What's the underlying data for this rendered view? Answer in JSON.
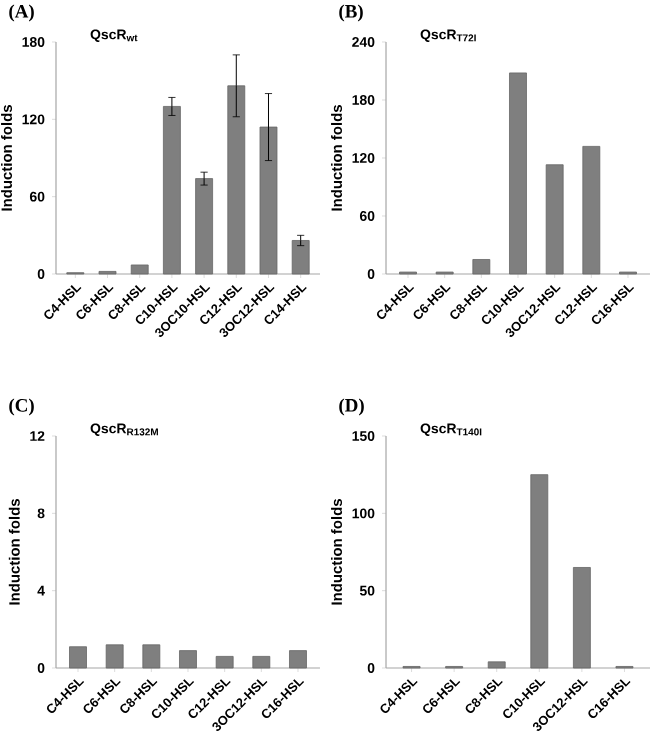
{
  "chart_data": [
    {
      "type": "bar",
      "title": "QscR$_{wt}$",
      "ylabel": "Induction folds",
      "annotations": [
        "(A)"
      ],
      "categories": [
        "C4-HSL",
        "C6-HSL",
        "C8-HSL",
        "C10-HSL",
        "3OC10-HSL",
        "C12-HSL",
        "3OC12-HSL",
        "C14-HSL"
      ],
      "values": [
        1,
        2,
        7,
        130,
        74,
        146,
        114,
        26
      ],
      "errors": [
        null,
        null,
        null,
        7,
        5,
        24,
        26,
        4
      ],
      "color": "#7f7f7f",
      "ylim": [
        0,
        180
      ],
      "yticks": [
        0,
        60,
        120,
        180
      ]
    },
    {
      "type": "bar",
      "title": "QscR$_{T72I}$",
      "ylabel": "Induction folds",
      "annotations": [
        "(B)"
      ],
      "categories": [
        "C4-HSL",
        "C6-HSL",
        "C8-HSL",
        "C10-HSL",
        "3OC12-HSL",
        "C12-HSL",
        "C16-HSL"
      ],
      "values": [
        2,
        2,
        15,
        208,
        113,
        132,
        2
      ],
      "color": "#7f7f7f",
      "ylim": [
        0,
        240
      ],
      "yticks": [
        0,
        60,
        120,
        180,
        240
      ]
    },
    {
      "type": "bar",
      "title": "QscR$_{R132M}$",
      "ylabel": "Induction folds",
      "annotations": [
        "(C)"
      ],
      "categories": [
        "C4-HSL",
        "C6-HSL",
        "C8-HSL",
        "C10-HSL",
        "C12-HSL",
        "3OC12-HSL",
        "C16-HSL"
      ],
      "values": [
        1.1,
        1.2,
        1.2,
        0.9,
        0.6,
        0.6,
        0.9
      ],
      "color": "#7f7f7f",
      "ylim": [
        0,
        12
      ],
      "yticks": [
        0,
        4,
        8,
        12
      ]
    },
    {
      "type": "bar",
      "title": "QscR$_{T140I}$",
      "ylabel": "Induction folds",
      "annotations": [
        "(D)"
      ],
      "categories": [
        "C4-HSL",
        "C6-HSL",
        "C8-HSL",
        "C10-HSL",
        "3OC12-HSL",
        "C16-HSL"
      ],
      "values": [
        1,
        1,
        4,
        125,
        65,
        1
      ],
      "color": "#7f7f7f",
      "ylim": [
        0,
        150
      ],
      "yticks": [
        0,
        50,
        100,
        150
      ]
    }
  ]
}
